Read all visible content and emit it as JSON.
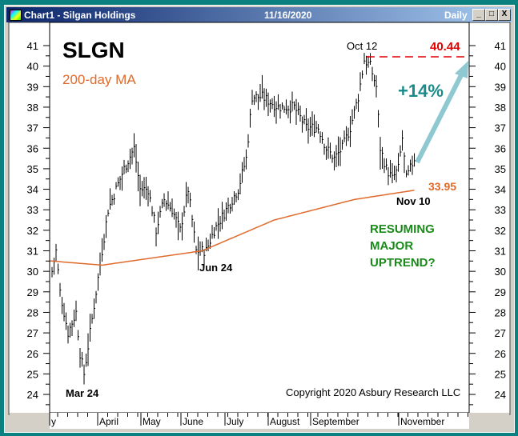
{
  "window": {
    "title": "Chart1 - Silgan Holdings",
    "date": "11/16/2020",
    "period": "Daily",
    "min": "_",
    "max": "□",
    "close": "X"
  },
  "colors": {
    "teal": "#0a8080",
    "ma": "#e06a2a",
    "red": "#e00000",
    "arrow": "#8ec8d0",
    "green": "#1a8a1a",
    "pct": "#1a8a8a"
  },
  "chart_data": {
    "type": "bar",
    "title": "SLGN",
    "legend": "200-day MA",
    "ylim": [
      23.5,
      42
    ],
    "yticks": [
      24,
      25,
      26,
      27,
      28,
      29,
      30,
      31,
      32,
      33,
      34,
      35,
      36,
      37,
      38,
      39,
      40,
      41
    ],
    "months": [
      "y",
      "April",
      "May",
      "June",
      "July",
      "August",
      "September",
      "November"
    ],
    "price_anchors_day_value": [
      [
        0,
        30
      ],
      [
        2,
        31
      ],
      [
        4,
        29
      ],
      [
        8,
        27
      ],
      [
        12,
        28
      ],
      [
        14,
        26
      ],
      [
        16,
        25
      ],
      [
        19,
        27
      ],
      [
        22,
        29
      ],
      [
        25,
        31
      ],
      [
        28,
        33
      ],
      [
        32,
        34
      ],
      [
        36,
        35
      ],
      [
        41,
        36
      ],
      [
        44,
        34
      ],
      [
        48,
        34
      ],
      [
        52,
        32
      ],
      [
        56,
        33.5
      ],
      [
        60,
        33
      ],
      [
        64,
        32
      ],
      [
        68,
        34
      ],
      [
        72,
        31
      ],
      [
        77,
        31
      ],
      [
        81,
        32
      ],
      [
        87,
        33
      ],
      [
        93,
        34
      ],
      [
        97,
        35.5
      ],
      [
        100,
        38.5
      ],
      [
        105,
        38.5
      ],
      [
        113,
        38
      ],
      [
        121,
        38
      ],
      [
        127,
        37
      ],
      [
        133,
        37
      ],
      [
        137,
        36
      ],
      [
        141,
        35.5
      ],
      [
        145,
        36
      ],
      [
        149,
        37
      ],
      [
        153,
        38.5
      ],
      [
        156,
        40.3
      ],
      [
        159,
        40
      ],
      [
        162,
        39
      ],
      [
        164,
        36
      ],
      [
        167,
        35
      ],
      [
        170,
        34.5
      ],
      [
        173,
        35
      ],
      [
        175,
        36.5
      ],
      [
        177,
        34.5
      ],
      [
        179,
        35
      ],
      [
        181,
        35.5
      ]
    ],
    "ma_anchors_day_value": [
      [
        0,
        30.5
      ],
      [
        25,
        30.3
      ],
      [
        75,
        31
      ],
      [
        111,
        32.5
      ],
      [
        151,
        33.5
      ],
      [
        181,
        33.95
      ]
    ],
    "annotations": {
      "oct12": "Oct 12",
      "high": "40.44",
      "pct": "+14%",
      "ma_value": "33.95",
      "nov10": "Nov 10",
      "jun24": "Jun 24",
      "mar24": "Mar 24",
      "resuming": [
        "RESUMING",
        "MAJOR",
        "UPTREND?"
      ],
      "copyright": "Copyright 2020 Asbury Research LLC"
    }
  }
}
